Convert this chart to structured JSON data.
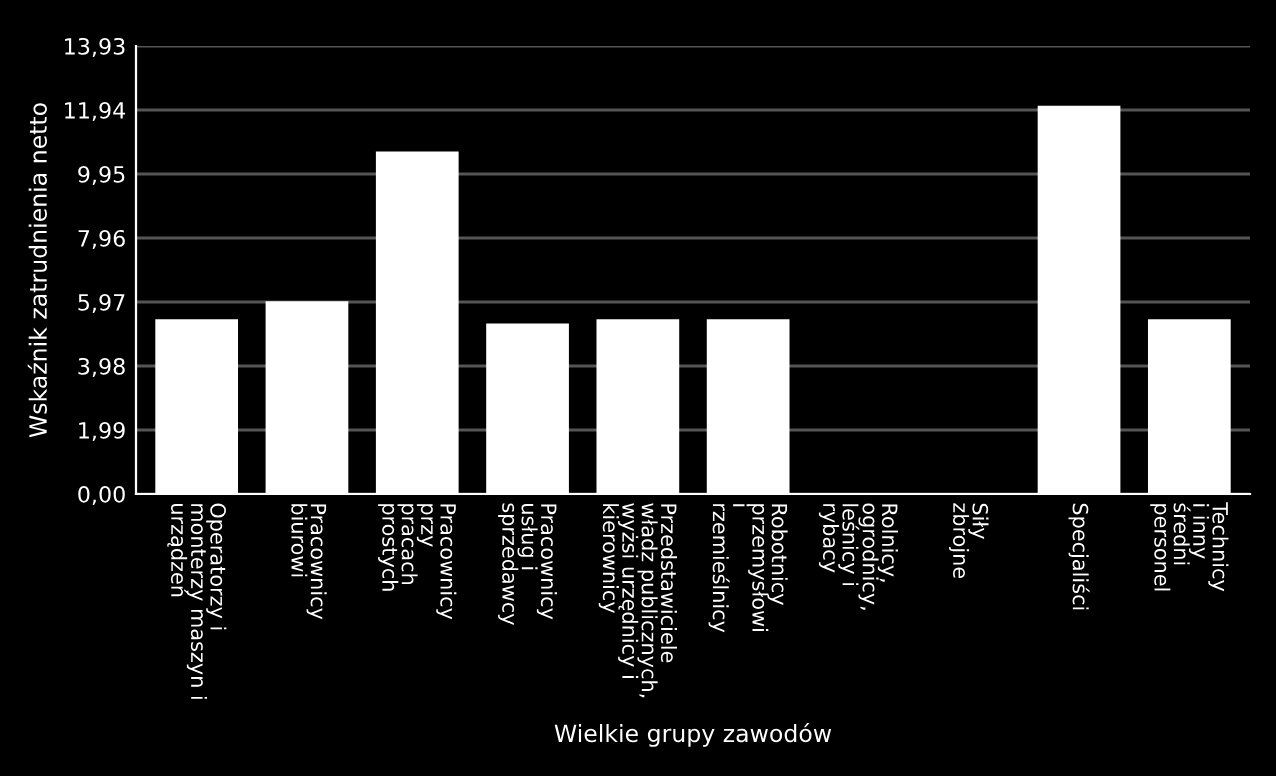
{
  "chart_data": {
    "type": "bar",
    "xlabel": "Wielkie grupy zawodów",
    "ylabel": "Wskaźnik zatrudnienia netto",
    "categories": [
      "Operatorzy i\nmonterzy maszyn i\nurządzeń",
      "Pracownicy\nbiurowi",
      "Pracownicy\nprzy\npracach\nprostych",
      "Pracownicy\nusług i\nsprzedawcy",
      "Przedstawiciele\nwładz publicznych,\nwyżsi urzędnicy i\nkierownicy",
      "Robotnicy\nprzemysłowi\ni\nrzemieślnicy",
      "Rolnicy,\nogrodnicy,\nleśnicy i\nrybacy",
      "Siły\nzbrojne",
      "Specjaliści",
      "Technicy\ni inny\nśredni\npersonel"
    ],
    "values": [
      5.43,
      5.99,
      10.65,
      5.3,
      5.43,
      5.43,
      0,
      0,
      12.07,
      5.43
    ],
    "color": "#ffffff",
    "ylim": [
      0,
      13.93
    ],
    "yticks": [
      {
        "value": 0,
        "label": "0,00"
      },
      {
        "value": 1.99,
        "label": "1,99"
      },
      {
        "value": 3.98,
        "label": "3,98"
      },
      {
        "value": 5.97,
        "label": "5,97"
      },
      {
        "value": 7.96,
        "label": "7,96"
      },
      {
        "value": 9.95,
        "label": "9,95"
      },
      {
        "value": 11.94,
        "label": "11,94"
      },
      {
        "value": 13.93,
        "label": "13,93"
      }
    ],
    "grid": "y"
  }
}
